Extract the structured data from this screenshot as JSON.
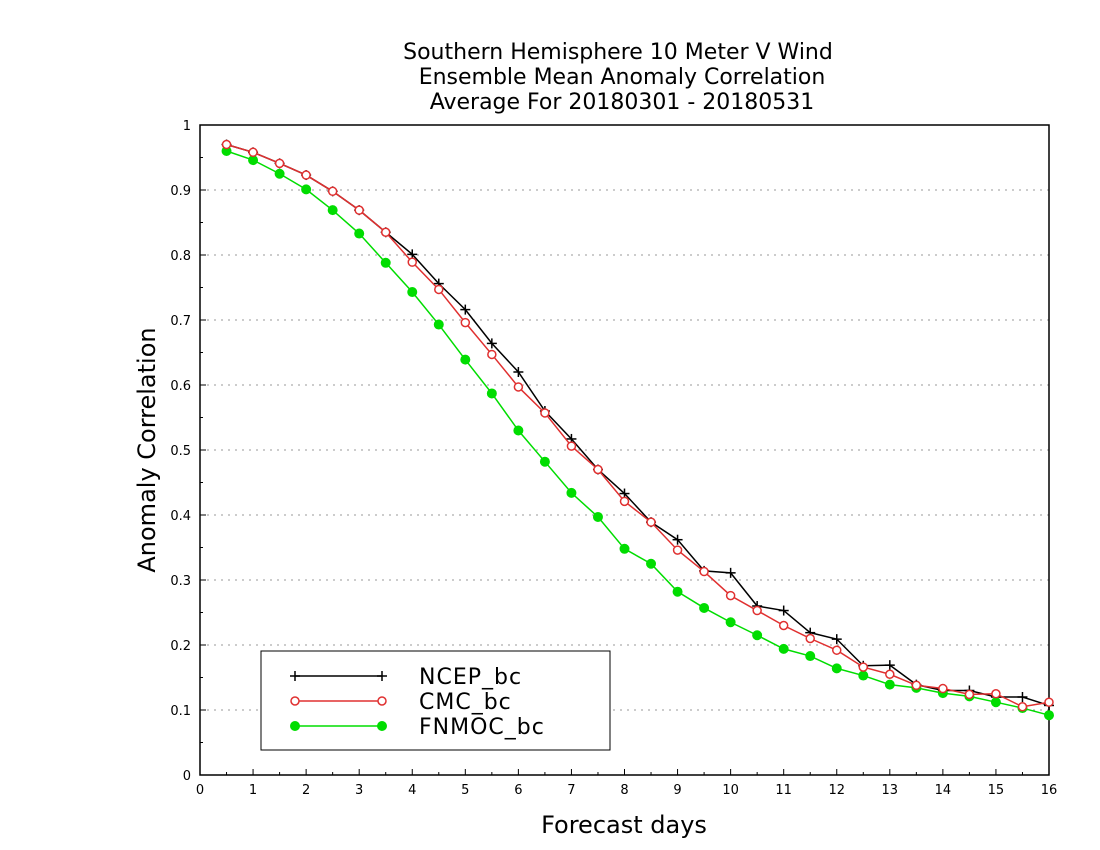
{
  "chart_data": {
    "type": "line",
    "title": [
      "Southern Hemisphere 10 Meter V Wind",
      "Ensemble Mean Anomaly Correlation",
      "Average For 20180301 - 20180531"
    ],
    "xlabel": "Forecast days",
    "ylabel": "Anomaly Correlation",
    "xlim": [
      0,
      16
    ],
    "ylim": [
      0,
      1
    ],
    "xticks": [
      "0",
      "1",
      "2",
      "3",
      "4",
      "5",
      "6",
      "7",
      "8",
      "9",
      "10",
      "11",
      "12",
      "13",
      "14",
      "15",
      "16"
    ],
    "yticks": [
      "0",
      "0.1",
      "0.2",
      "0.3",
      "0.4",
      "0.5",
      "0.6",
      "0.7",
      "0.8",
      "0.9",
      "1"
    ],
    "grid": "horizontal dotted",
    "legend_position": "bottom-left",
    "x": [
      0.5,
      1,
      1.5,
      2,
      2.5,
      3,
      3.5,
      4,
      4.5,
      5,
      5.5,
      6,
      6.5,
      7,
      7.5,
      8,
      8.5,
      9,
      9.5,
      10,
      10.5,
      11,
      11.5,
      12,
      12.5,
      13,
      13.5,
      14,
      14.5,
      15,
      15.5,
      16
    ],
    "series": [
      {
        "name": "NCEP_bc",
        "color": "#000000",
        "marker": "plus",
        "values": [
          0.97,
          0.958,
          0.941,
          0.923,
          0.898,
          0.869,
          0.835,
          0.801,
          0.756,
          0.716,
          0.664,
          0.62,
          0.56,
          0.517,
          0.47,
          0.433,
          0.389,
          0.362,
          0.314,
          0.311,
          0.26,
          0.253,
          0.219,
          0.209,
          0.168,
          0.169,
          0.139,
          0.13,
          0.13,
          0.12,
          0.12,
          0.107
        ]
      },
      {
        "name": "CMC_bc",
        "color": "#e03030",
        "marker": "open-circle",
        "values": [
          0.97,
          0.958,
          0.941,
          0.923,
          0.898,
          0.869,
          0.835,
          0.789,
          0.747,
          0.696,
          0.647,
          0.597,
          0.557,
          0.506,
          0.47,
          0.421,
          0.389,
          0.346,
          0.313,
          0.276,
          0.253,
          0.23,
          0.21,
          0.192,
          0.166,
          0.155,
          0.138,
          0.133,
          0.124,
          0.125,
          0.105,
          0.112
        ]
      },
      {
        "name": "FNMOC_bc",
        "color": "#00dd00",
        "marker": "filled-circle",
        "values": [
          0.96,
          0.946,
          0.925,
          0.901,
          0.869,
          0.833,
          0.788,
          0.743,
          0.693,
          0.639,
          0.587,
          0.53,
          0.482,
          0.434,
          0.397,
          0.348,
          0.325,
          0.282,
          0.257,
          0.235,
          0.215,
          0.194,
          0.183,
          0.164,
          0.153,
          0.139,
          0.134,
          0.126,
          0.121,
          0.112,
          0.103,
          0.092
        ]
      }
    ]
  }
}
